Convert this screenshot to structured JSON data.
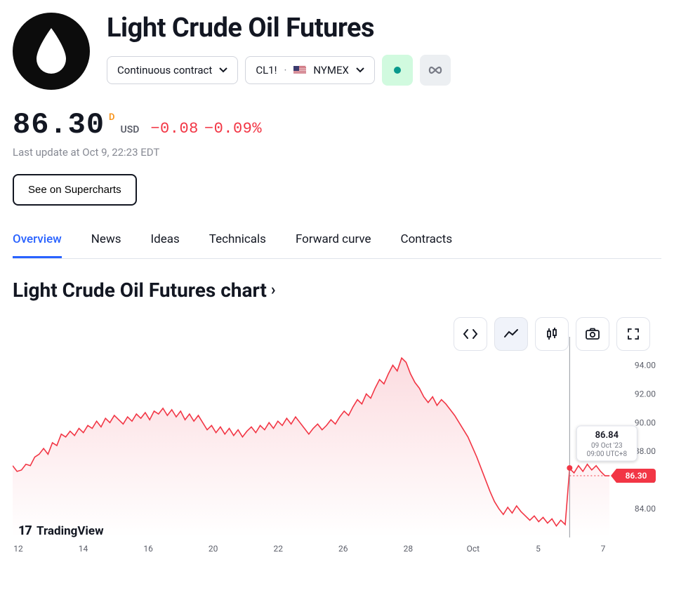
{
  "header": {
    "title": "Light Crude Oil Futures",
    "contract_selector_label": "Continuous contract",
    "symbol_left": "CL1!",
    "symbol_exchange": "NYMEX"
  },
  "price": {
    "value": "86.30",
    "indicator_letter": "D",
    "currency": "USD",
    "change_abs": "−0.08",
    "change_pct": "−0.09%",
    "change_color": "#f23645",
    "last_update": "Last update at Oct 9, 22:23 EDT"
  },
  "buttons": {
    "supercharts": "See on Supercharts"
  },
  "tabs": [
    {
      "label": "Overview",
      "active": true
    },
    {
      "label": "News",
      "active": false
    },
    {
      "label": "Ideas",
      "active": false
    },
    {
      "label": "Technicals",
      "active": false
    },
    {
      "label": "Forward curve",
      "active": false
    },
    {
      "label": "Contracts",
      "active": false
    }
  ],
  "chart_section": {
    "title": "Light Crude Oil Futures chart",
    "watermark": "TradingView"
  },
  "chart_tooltip": {
    "value": "86.84",
    "line1": "09 Oct '23",
    "line2": "09:00 UTC+8"
  },
  "chart_price_tag": "86.30",
  "chart": {
    "type": "area",
    "line_color": "#f23645",
    "fill_top_color": "#fcdce0",
    "fill_bottom_color": "#ffffff",
    "background_color": "#ffffff",
    "y_axis": {
      "min": 82,
      "max": 95,
      "ticks": [
        84.0,
        86.0,
        88.0,
        90.0,
        92.0,
        94.0
      ],
      "fontsize": 12,
      "color": "#5d606b"
    },
    "x_axis": {
      "labels": [
        "12",
        "14",
        "16",
        "20",
        "22",
        "26",
        "28",
        "Oct",
        "5",
        "7"
      ],
      "fontsize": 12,
      "color": "#5d606b"
    },
    "current_value": 86.3,
    "highlight_point": {
      "x_index": 126,
      "value": 86.84
    },
    "series": [
      87.0,
      86.6,
      86.7,
      87.1,
      87.0,
      87.6,
      87.8,
      88.2,
      87.8,
      88.6,
      88.4,
      89.2,
      89.0,
      89.4,
      89.1,
      89.6,
      89.3,
      89.8,
      89.6,
      90.1,
      89.7,
      90.3,
      90.0,
      90.5,
      90.2,
      89.9,
      90.4,
      90.1,
      90.6,
      90.3,
      90.7,
      90.2,
      90.8,
      90.6,
      91.0,
      90.5,
      90.9,
      90.4,
      90.8,
      90.2,
      90.6,
      90.1,
      90.5,
      90.0,
      89.5,
      89.8,
      89.3,
      89.7,
      89.2,
      89.6,
      89.1,
      89.5,
      89.0,
      89.4,
      89.7,
      89.3,
      89.8,
      89.5,
      90.0,
      89.6,
      90.1,
      89.8,
      90.3,
      89.9,
      90.4,
      90.0,
      89.6,
      89.2,
      89.6,
      89.9,
      89.5,
      89.8,
      90.2,
      89.9,
      90.4,
      90.8,
      90.5,
      91.1,
      91.6,
      91.3,
      92.0,
      91.7,
      92.4,
      93.0,
      92.7,
      93.4,
      94.0,
      93.6,
      94.5,
      94.2,
      93.4,
      92.8,
      92.4,
      91.8,
      91.4,
      91.8,
      91.2,
      91.6,
      91.3,
      90.9,
      90.5,
      90.0,
      89.5,
      89.0,
      88.3,
      87.6,
      86.8,
      86.0,
      85.2,
      84.5,
      84.0,
      83.6,
      84.1,
      83.7,
      84.2,
      83.8,
      83.5,
      83.2,
      83.5,
      83.1,
      83.4,
      83.0,
      83.3,
      82.8,
      83.2,
      82.9,
      86.8,
      86.5,
      87.0,
      86.6,
      87.1,
      86.7,
      87.0,
      86.6,
      86.3,
      86.3
    ]
  }
}
